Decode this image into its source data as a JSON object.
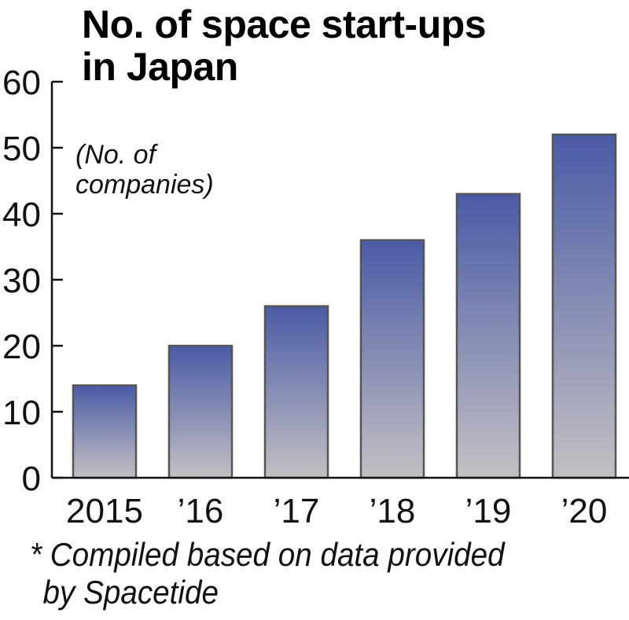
{
  "chart_data": {
    "type": "bar",
    "title": "No. of space start-ups in Japan",
    "title_lines": [
      "No. of space start-ups",
      "in Japan"
    ],
    "ylabel": "(No. of companies)",
    "ylabel_lines": [
      "(No. of",
      "companies)"
    ],
    "xlabel": "",
    "categories": [
      "2015",
      "’16",
      "’17",
      "’18",
      "’19",
      "’20"
    ],
    "values": [
      14,
      20,
      26,
      36,
      43,
      52
    ],
    "ylim": [
      0,
      60
    ],
    "yticks": [
      0,
      10,
      20,
      30,
      40,
      50,
      60
    ],
    "grid": false,
    "legend": "none",
    "bar_gradient": {
      "top": "#4a5ba6",
      "bottom": "#c3c0c3"
    },
    "bar_stroke": "#555555",
    "note_lines": [
      "* Compiled based on data provided",
      "by Spacetide"
    ]
  }
}
